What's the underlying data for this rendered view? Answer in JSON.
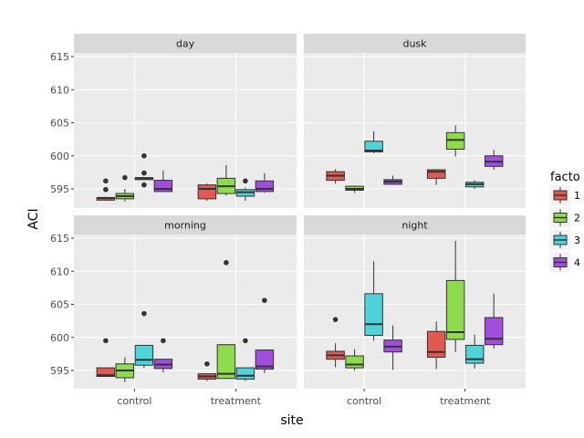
{
  "chart_data": {
    "type": "boxplot",
    "xlabel": "site",
    "ylabel": "ACI",
    "ylim": [
      592,
      617
    ],
    "yticks": [
      595,
      600,
      605,
      610,
      615
    ],
    "categories": [
      "control",
      "treatment"
    ],
    "legend": {
      "title": "factor",
      "title_visible": "facto",
      "placement": "right",
      "entries": [
        {
          "label": "1",
          "color": "#e15a51"
        },
        {
          "label": "2",
          "color": "#8fdb4e"
        },
        {
          "label": "3",
          "color": "#4fd2d8"
        },
        {
          "label": "4",
          "color": "#9f4fdc"
        }
      ]
    },
    "panels": [
      {
        "title": "day",
        "boxes": [
          {
            "site": "control",
            "factor": "1",
            "min": 593.2,
            "q1": 593.3,
            "median": 593.6,
            "q3": 593.7,
            "max": 593.8,
            "outliers": [
              594.9,
              596.2
            ]
          },
          {
            "site": "control",
            "factor": "2",
            "min": 593.1,
            "q1": 593.5,
            "median": 593.9,
            "q3": 594.3,
            "max": 595.0,
            "outliers": [
              596.7
            ]
          },
          {
            "site": "control",
            "factor": "3",
            "min": 596.4,
            "q1": 596.4,
            "median": 596.6,
            "q3": 596.7,
            "max": 596.8,
            "outliers": [
              595.6,
              597.4,
              600.0
            ]
          },
          {
            "site": "control",
            "factor": "4",
            "min": 594.6,
            "q1": 594.6,
            "median": 595.0,
            "q3": 596.3,
            "max": 597.8,
            "outliers": []
          },
          {
            "site": "treatment",
            "factor": "1",
            "min": 593.2,
            "q1": 593.5,
            "median": 595.0,
            "q3": 595.6,
            "max": 595.8,
            "outliers": []
          },
          {
            "site": "treatment",
            "factor": "2",
            "min": 594.0,
            "q1": 594.3,
            "median": 595.4,
            "q3": 596.6,
            "max": 598.6,
            "outliers": []
          },
          {
            "site": "treatment",
            "factor": "3",
            "min": 593.2,
            "q1": 593.9,
            "median": 594.5,
            "q3": 594.9,
            "max": 595.2,
            "outliers": [
              596.2
            ]
          },
          {
            "site": "treatment",
            "factor": "4",
            "min": 594.4,
            "q1": 594.6,
            "median": 595.0,
            "q3": 596.2,
            "max": 597.4,
            "outliers": []
          }
        ]
      },
      {
        "title": "dusk",
        "boxes": [
          {
            "site": "control",
            "factor": "1",
            "min": 595.8,
            "q1": 596.3,
            "median": 597.0,
            "q3": 597.6,
            "max": 598.0,
            "outliers": []
          },
          {
            "site": "control",
            "factor": "2",
            "min": 594.4,
            "q1": 594.8,
            "median": 595.0,
            "q3": 595.4,
            "max": 595.5,
            "outliers": []
          },
          {
            "site": "control",
            "factor": "3",
            "min": 600.4,
            "q1": 600.6,
            "median": 600.8,
            "q3": 602.2,
            "max": 603.7,
            "outliers": []
          },
          {
            "site": "control",
            "factor": "4",
            "min": 595.6,
            "q1": 595.7,
            "median": 596.1,
            "q3": 596.4,
            "max": 597.0,
            "outliers": []
          },
          {
            "site": "treatment",
            "factor": "1",
            "min": 595.6,
            "q1": 596.6,
            "median": 597.6,
            "q3": 597.9,
            "max": 598.0,
            "outliers": []
          },
          {
            "site": "treatment",
            "factor": "2",
            "min": 599.9,
            "q1": 601.0,
            "median": 602.4,
            "q3": 603.5,
            "max": 604.6,
            "outliers": []
          },
          {
            "site": "treatment",
            "factor": "3",
            "min": 595.0,
            "q1": 595.3,
            "median": 595.7,
            "q3": 596.0,
            "max": 596.3,
            "outliers": []
          },
          {
            "site": "treatment",
            "factor": "4",
            "min": 597.9,
            "q1": 598.4,
            "median": 599.1,
            "q3": 600.0,
            "max": 600.9,
            "outliers": []
          }
        ]
      },
      {
        "title": "morning",
        "boxes": [
          {
            "site": "control",
            "factor": "1",
            "min": 594.1,
            "q1": 594.1,
            "median": 594.3,
            "q3": 595.4,
            "max": 595.4,
            "outliers": [
              599.5
            ]
          },
          {
            "site": "control",
            "factor": "2",
            "min": 593.2,
            "q1": 593.9,
            "median": 595.0,
            "q3": 596.0,
            "max": 597.0,
            "outliers": []
          },
          {
            "site": "control",
            "factor": "3",
            "min": 595.4,
            "q1": 595.8,
            "median": 596.6,
            "q3": 598.8,
            "max": 598.8,
            "outliers": [
              603.6
            ]
          },
          {
            "site": "control",
            "factor": "4",
            "min": 594.7,
            "q1": 595.3,
            "median": 595.9,
            "q3": 596.7,
            "max": 596.7,
            "outliers": [
              599.5
            ]
          },
          {
            "site": "treatment",
            "factor": "1",
            "min": 593.4,
            "q1": 593.7,
            "median": 594.1,
            "q3": 594.5,
            "max": 594.5,
            "outliers": [
              596.0
            ]
          },
          {
            "site": "treatment",
            "factor": "2",
            "min": 593.8,
            "q1": 593.8,
            "median": 594.5,
            "q3": 598.9,
            "max": 598.9,
            "outliers": [
              611.3
            ]
          },
          {
            "site": "treatment",
            "factor": "3",
            "min": 593.4,
            "q1": 593.7,
            "median": 594.2,
            "q3": 595.4,
            "max": 595.4,
            "outliers": [
              599.5
            ]
          },
          {
            "site": "treatment",
            "factor": "4",
            "min": 594.6,
            "q1": 595.2,
            "median": 595.6,
            "q3": 598.1,
            "max": 598.1,
            "outliers": [
              605.6
            ]
          }
        ]
      },
      {
        "title": "night",
        "boxes": [
          {
            "site": "control",
            "factor": "1",
            "min": 595.5,
            "q1": 596.7,
            "median": 597.3,
            "q3": 597.9,
            "max": 599.1,
            "outliers": [
              602.7
            ]
          },
          {
            "site": "control",
            "factor": "2",
            "min": 595.0,
            "q1": 595.4,
            "median": 595.9,
            "q3": 597.2,
            "max": 598.2,
            "outliers": []
          },
          {
            "site": "control",
            "factor": "3",
            "min": 599.5,
            "q1": 600.3,
            "median": 602.0,
            "q3": 606.6,
            "max": 611.5,
            "outliers": []
          },
          {
            "site": "control",
            "factor": "4",
            "min": 595.1,
            "q1": 597.8,
            "median": 598.6,
            "q3": 599.6,
            "max": 601.8,
            "outliers": []
          },
          {
            "site": "treatment",
            "factor": "1",
            "min": 595.2,
            "q1": 597.0,
            "median": 597.8,
            "q3": 600.9,
            "max": 602.4,
            "outliers": []
          },
          {
            "site": "treatment",
            "factor": "2",
            "min": 597.8,
            "q1": 599.7,
            "median": 600.8,
            "q3": 608.6,
            "max": 614.6,
            "outliers": []
          },
          {
            "site": "treatment",
            "factor": "3",
            "min": 595.3,
            "q1": 596.1,
            "median": 596.7,
            "q3": 598.8,
            "max": 600.4,
            "outliers": []
          },
          {
            "site": "treatment",
            "factor": "4",
            "min": 598.3,
            "q1": 598.9,
            "median": 599.8,
            "q3": 603.0,
            "max": 606.6,
            "outliers": []
          }
        ]
      }
    ]
  }
}
